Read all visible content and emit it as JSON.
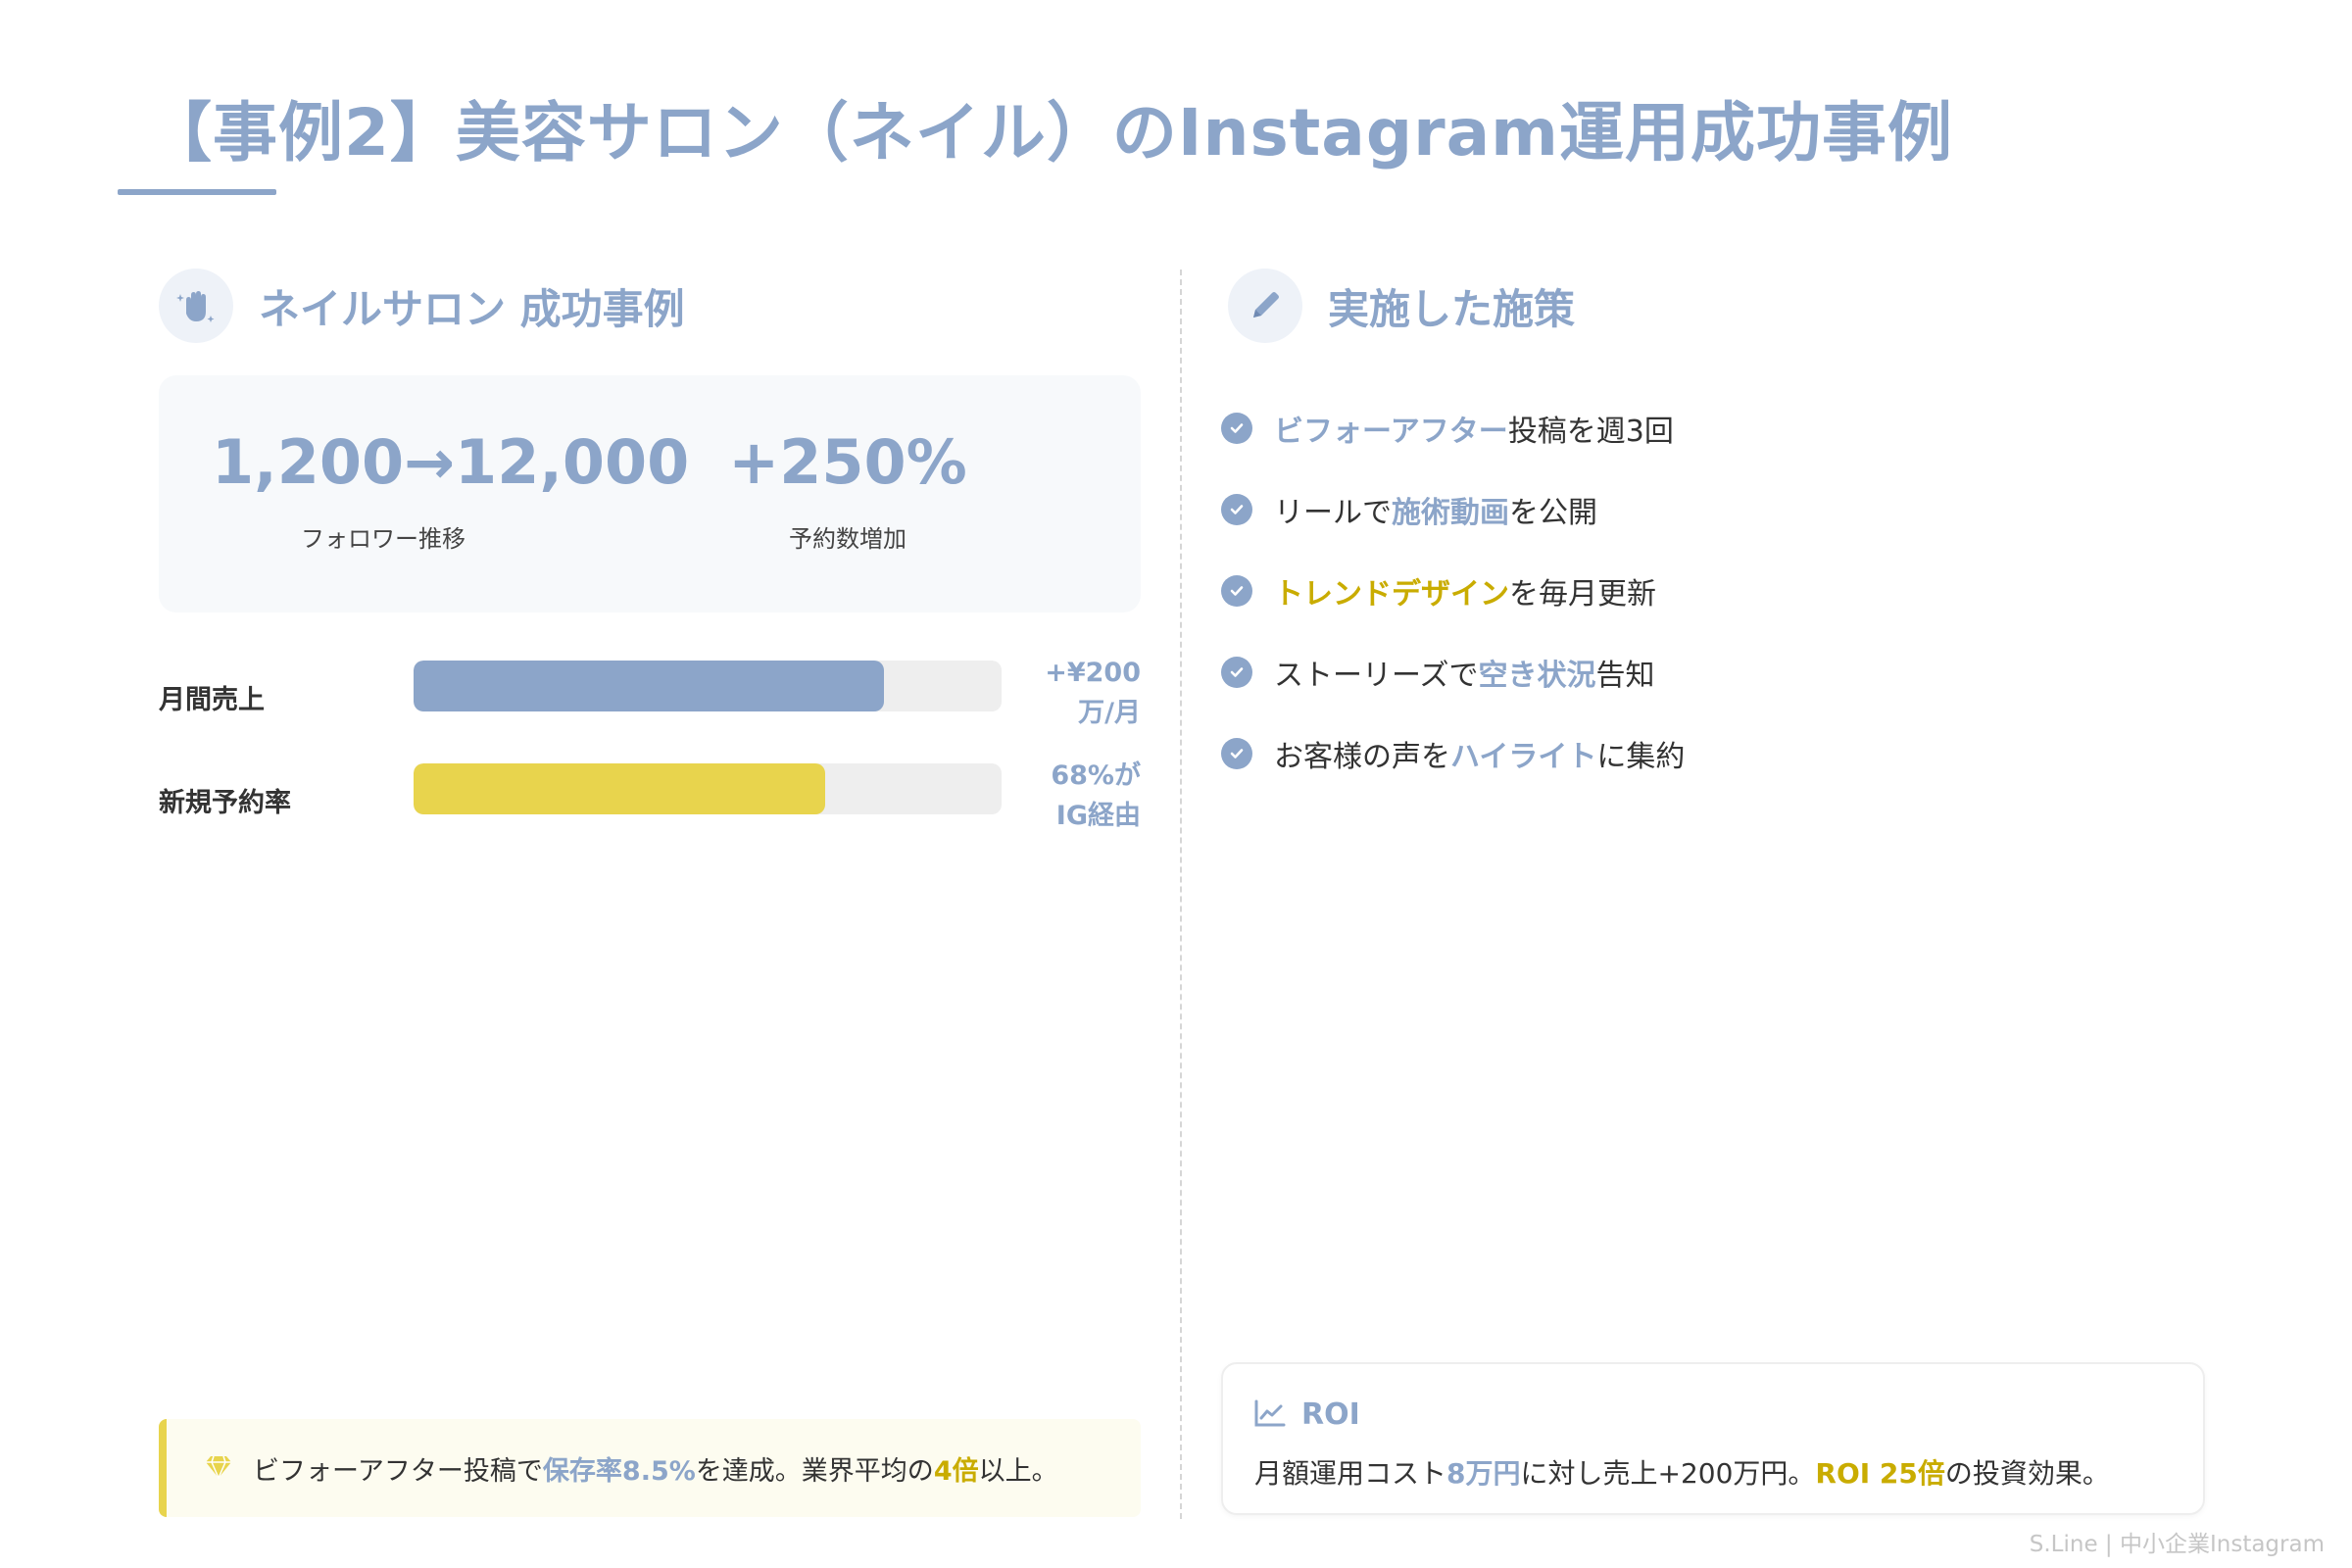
{
  "title": "【事例2】美容サロン（ネイル）のInstagram運用成功事例",
  "left": {
    "heading": "ネイルサロン 成功事例",
    "icon": "hand-sparkle-icon",
    "stats": [
      {
        "value": "1,200→12,000",
        "label": "フォロワー推移"
      },
      {
        "value": "+250%",
        "label": "予約数増加"
      }
    ],
    "bars": [
      {
        "label": "月間売上",
        "value_text": "+¥200万/月",
        "fill": 0.8,
        "color": "#8ca5c9"
      },
      {
        "label": "新規予約率",
        "value_text": "68%がIG経由",
        "fill": 0.7,
        "color": "#e8d44d"
      }
    ],
    "callout": {
      "icon": "gem-icon",
      "parts": [
        "ビフォーアフター投稿で",
        "保存率8.5%",
        "を達成。業界平均の",
        "4倍",
        "以上。"
      ]
    }
  },
  "right": {
    "heading": "実施した施策",
    "icon": "pencil-icon",
    "measures": [
      {
        "parts": [
          "ビフォーアフター",
          "投稿を週3回"
        ],
        "first_style": "blue"
      },
      {
        "parts": [
          "リールで",
          "施術動画",
          "を公開"
        ]
      },
      {
        "parts": [
          "トレンドデザイン",
          "を毎月更新"
        ],
        "first_style": "gold"
      },
      {
        "parts": [
          "ストーリーズで",
          "空き状況",
          "告知"
        ]
      },
      {
        "parts": [
          "お客様の声を",
          "ハイライト",
          "に集約"
        ]
      }
    ],
    "roi": {
      "icon": "chart-line-icon",
      "title": "ROI",
      "parts": [
        "月額運用コスト",
        "8万円",
        "に対し売上+200万円。",
        "ROI 25倍",
        "の投資効果。"
      ]
    }
  },
  "footer": "S.Line | 中小企業Instagram",
  "colors": {
    "accent": "#8ca5c9",
    "gold": "#c9ac00",
    "bar_gold": "#e8d44d"
  }
}
